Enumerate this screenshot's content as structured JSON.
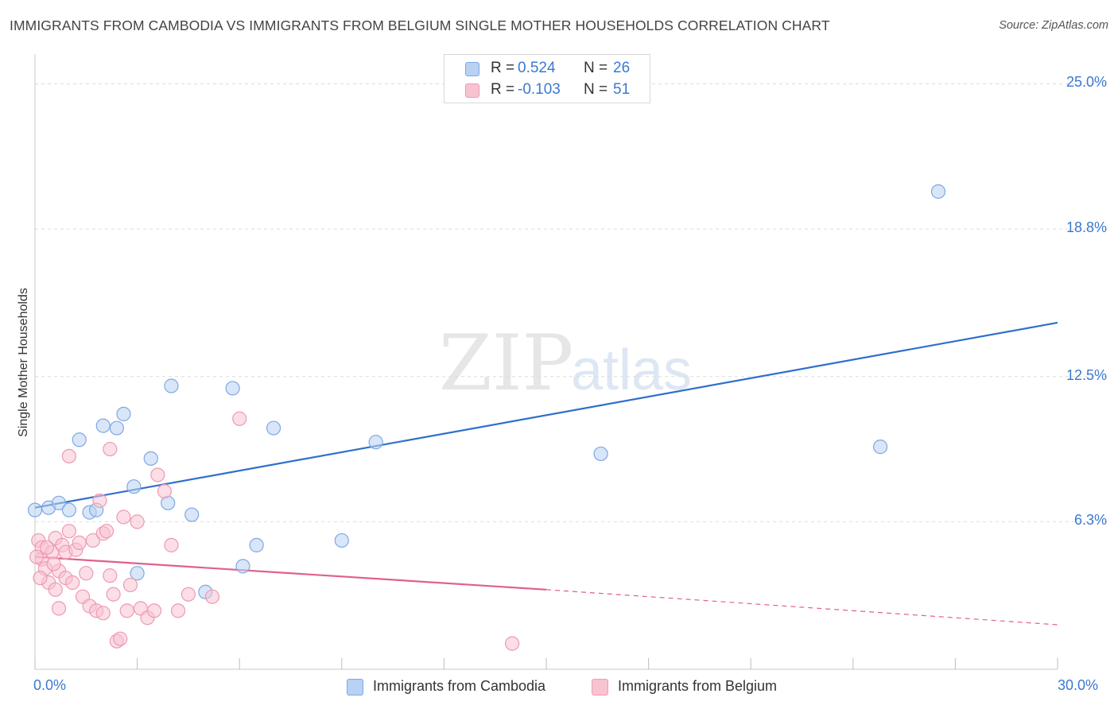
{
  "title": "IMMIGRANTS FROM CAMBODIA VS IMMIGRANTS FROM BELGIUM SINGLE MOTHER HOUSEHOLDS CORRELATION CHART",
  "source": "Source: ZipAtlas.com",
  "watermark": {
    "zip": "ZIP",
    "atlas": "atlas"
  },
  "legend_top": {
    "rows": [
      {
        "r_label": "R =",
        "r_value": "0.524",
        "n_label": "N =",
        "n_value": "26"
      },
      {
        "r_label": "R =",
        "r_value": "-0.103",
        "n_label": "N =",
        "n_value": "51"
      }
    ]
  },
  "legend_bottom": [
    "Immigrants from Cambodia",
    "Immigrants from Belgium"
  ],
  "colors": {
    "blue_fill": "#b9d1f2",
    "blue_stroke": "#7ea8e3",
    "blue_line": "#2f6fcc",
    "pink_fill": "#f8c3d1",
    "pink_stroke": "#ee9ab3",
    "pink_line": "#e0608c",
    "grid": "#dcdcdc",
    "tick_text": "#3b78d0"
  },
  "chart_data": {
    "type": "scatter",
    "ylabel": "Single Mother Households",
    "xlim": [
      0,
      30
    ],
    "ylim": [
      0,
      26
    ],
    "x_tick_labels": [
      "0.0%",
      "30.0%"
    ],
    "y_ticks": [
      6.3,
      12.5,
      18.8,
      25.0
    ],
    "y_tick_labels": [
      "6.3%",
      "12.5%",
      "18.8%",
      "25.0%"
    ],
    "grid": true,
    "series": [
      {
        "name": "Immigrants from Cambodia",
        "color": "blue",
        "points": [
          [
            0.0,
            6.8
          ],
          [
            0.4,
            6.9
          ],
          [
            0.7,
            7.1
          ],
          [
            1.0,
            6.8
          ],
          [
            1.3,
            9.8
          ],
          [
            1.6,
            6.7
          ],
          [
            1.8,
            6.8
          ],
          [
            2.0,
            10.4
          ],
          [
            2.4,
            10.3
          ],
          [
            2.6,
            10.9
          ],
          [
            3.0,
            4.1
          ],
          [
            2.9,
            7.8
          ],
          [
            3.4,
            9.0
          ],
          [
            3.9,
            7.1
          ],
          [
            4.0,
            12.1
          ],
          [
            4.6,
            6.6
          ],
          [
            5.0,
            3.3
          ],
          [
            5.8,
            12.0
          ],
          [
            6.1,
            4.4
          ],
          [
            6.5,
            5.3
          ],
          [
            7.0,
            10.3
          ],
          [
            9.0,
            5.5
          ],
          [
            10.0,
            9.7
          ],
          [
            16.6,
            9.2
          ],
          [
            24.8,
            9.5
          ],
          [
            26.5,
            20.4
          ]
        ],
        "trend": {
          "x": [
            0,
            30
          ],
          "y": [
            6.9,
            14.8
          ]
        }
      },
      {
        "name": "Immigrants from Belgium",
        "color": "pink",
        "points": [
          [
            0.1,
            5.5
          ],
          [
            0.2,
            4.7
          ],
          [
            0.2,
            5.2
          ],
          [
            0.3,
            4.3
          ],
          [
            0.4,
            3.7
          ],
          [
            0.5,
            5.0
          ],
          [
            0.6,
            5.6
          ],
          [
            0.6,
            3.4
          ],
          [
            0.7,
            2.6
          ],
          [
            0.7,
            4.2
          ],
          [
            0.8,
            5.3
          ],
          [
            0.9,
            3.9
          ],
          [
            0.9,
            5.0
          ],
          [
            1.0,
            5.9
          ],
          [
            1.0,
            9.1
          ],
          [
            1.1,
            3.7
          ],
          [
            1.2,
            5.1
          ],
          [
            1.3,
            5.4
          ],
          [
            1.4,
            3.1
          ],
          [
            1.5,
            4.1
          ],
          [
            1.6,
            2.7
          ],
          [
            1.7,
            5.5
          ],
          [
            1.8,
            2.5
          ],
          [
            1.9,
            7.2
          ],
          [
            2.0,
            2.4
          ],
          [
            2.0,
            5.8
          ],
          [
            2.1,
            5.9
          ],
          [
            2.2,
            4.0
          ],
          [
            2.2,
            9.4
          ],
          [
            2.3,
            3.2
          ],
          [
            2.4,
            1.2
          ],
          [
            2.5,
            1.3
          ],
          [
            2.6,
            6.5
          ],
          [
            2.7,
            2.5
          ],
          [
            2.8,
            3.6
          ],
          [
            3.0,
            6.3
          ],
          [
            3.1,
            2.6
          ],
          [
            3.3,
            2.2
          ],
          [
            3.5,
            2.5
          ],
          [
            3.6,
            8.3
          ],
          [
            3.8,
            7.6
          ],
          [
            4.0,
            5.3
          ],
          [
            4.2,
            2.5
          ],
          [
            4.5,
            3.2
          ],
          [
            5.2,
            3.1
          ],
          [
            6.0,
            10.7
          ],
          [
            14.0,
            1.1
          ],
          [
            0.05,
            4.8
          ],
          [
            0.15,
            3.9
          ],
          [
            0.35,
            5.2
          ],
          [
            0.55,
            4.5
          ]
        ],
        "trend": {
          "x": [
            0,
            15
          ],
          "y": [
            4.8,
            3.4
          ]
        },
        "trend_extension": {
          "x": [
            15,
            30
          ],
          "y": [
            3.4,
            1.9
          ]
        }
      }
    ]
  }
}
